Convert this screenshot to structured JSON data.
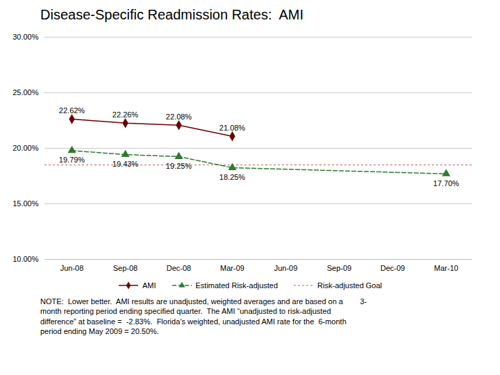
{
  "chart_data": {
    "type": "line",
    "title": "Disease-Specific Readmission Rates:  AMI",
    "categories": [
      "Jun-08",
      "Sep-08",
      "Dec-08",
      "Mar-09",
      "Jun-09",
      "Sep-09",
      "Dec-09",
      "Mar-10"
    ],
    "series": [
      {
        "name": "AMI",
        "color": "#6B0000",
        "marker": "diamond",
        "line_style": "solid",
        "x": [
          "Jun-08",
          "Sep-08",
          "Dec-08",
          "Mar-09"
        ],
        "values": [
          22.62,
          22.26,
          22.08,
          21.08
        ],
        "value_labels": [
          "22.62%",
          "22.26%",
          "22.08%",
          "21.08%"
        ]
      },
      {
        "name": "Estimated Risk-adjusted",
        "color": "#2E7B2E",
        "marker": "triangle",
        "line_style": "dashed",
        "x": [
          "Jun-08",
          "Sep-08",
          "Dec-08",
          "Mar-09",
          "Mar-10"
        ],
        "values": [
          19.79,
          19.43,
          19.25,
          18.25,
          17.7
        ],
        "value_labels": [
          "19.79%",
          "19.43%",
          "19.25%",
          "18.25%",
          "17.70%"
        ]
      }
    ],
    "reference_lines": [
      {
        "name": "Risk-adjusted Goal",
        "value": 18.5,
        "color": "#C06060",
        "line_style": "dotted"
      }
    ],
    "ylim": [
      10.0,
      30.0
    ],
    "yticks": [
      {
        "value": 10.0,
        "label": "10.00%"
      },
      {
        "value": 15.0,
        "label": "15.00%"
      },
      {
        "value": 20.0,
        "label": "20.00%"
      },
      {
        "value": 25.0,
        "label": "25.00%"
      },
      {
        "value": 30.0,
        "label": "30.00%"
      }
    ],
    "grid": true,
    "legend": "bottom",
    "data_labels": true,
    "annotations": [
      "NOTE:  Lower better.  AMI results are unadjusted, weighted averages and are based on a        3-\nmonth reporting period ending specified quarter.  The AMI “unadjusted to risk-adjusted\ndifference” at baseline =  -2.83%.  Florida’s weighted, unadjusted AMI rate for the  6-month\nperiod ending May 2009 = 20.50%."
    ]
  }
}
